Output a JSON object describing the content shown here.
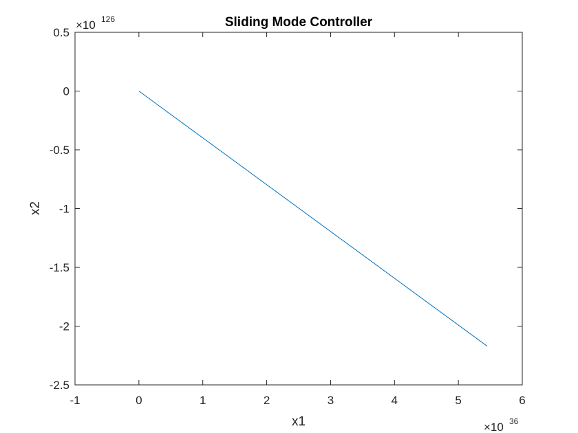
{
  "chart_data": {
    "type": "line",
    "title": "Sliding Mode Controller",
    "xlabel": "x1",
    "ylabel": "x2",
    "x_exponent_label": "×10",
    "x_exponent_power": "36",
    "y_exponent_label": "×10",
    "y_exponent_power": "126",
    "xlim": [
      -1,
      6
    ],
    "ylim": [
      -2.5,
      0.5
    ],
    "x_ticks": [
      -1,
      0,
      1,
      2,
      3,
      4,
      5,
      6
    ],
    "x_tick_labels": [
      "-1",
      "0",
      "1",
      "2",
      "3",
      "4",
      "5",
      "6"
    ],
    "y_ticks": [
      0.5,
      0,
      -0.5,
      -1,
      -1.5,
      -2,
      -2.5
    ],
    "y_tick_labels": [
      "0.5",
      "0",
      "-0.5",
      "-1",
      "-1.5",
      "-2",
      "-2.5"
    ],
    "grid": false,
    "series": [
      {
        "color": "#0072BD",
        "x": [
          0,
          5.45
        ],
        "y": [
          0,
          -2.17
        ]
      }
    ]
  }
}
